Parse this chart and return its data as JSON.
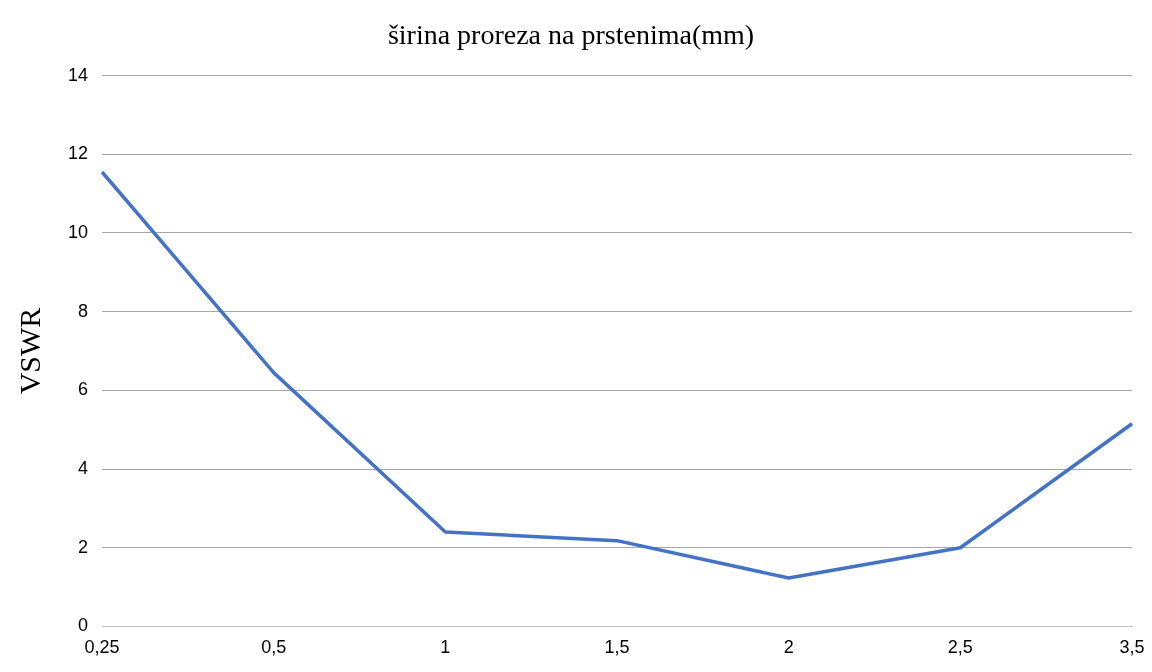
{
  "chart_data": {
    "type": "line",
    "title": "širina proreza na prstenima(mm)",
    "ylabel": "VSWR",
    "categories": [
      "0,25",
      "0,5",
      "1",
      "1,5",
      "2",
      "2,5",
      "3,5"
    ],
    "series": [
      {
        "color": "#4472c4",
        "values": [
          11.55,
          6.45,
          2.4,
          2.18,
          1.23,
          2.0,
          5.15
        ]
      }
    ],
    "ylim": [
      0,
      14
    ],
    "yticks": [
      0,
      2,
      4,
      6,
      8,
      10,
      12,
      14
    ],
    "grid": "y",
    "legend": false,
    "marker": "none"
  }
}
